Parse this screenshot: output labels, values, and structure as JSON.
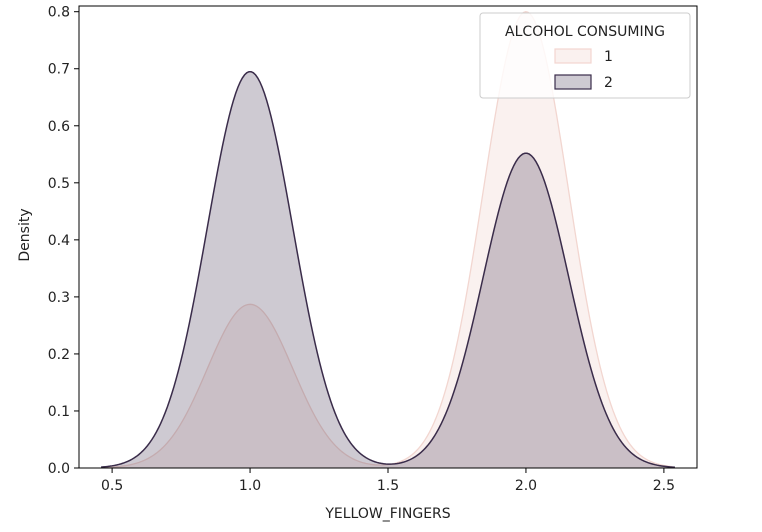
{
  "chart_data": {
    "type": "area",
    "xlabel": "YELLOW_FINGERS",
    "ylabel": "Density",
    "xlim": [
      0.38,
      2.62
    ],
    "ylim": [
      0,
      0.81
    ],
    "xticks": [
      0.5,
      1.0,
      1.5,
      2.0,
      2.5
    ],
    "xtick_labels": [
      "0.5",
      "1.0",
      "1.5",
      "2.0",
      "2.5"
    ],
    "yticks": [
      0.0,
      0.1,
      0.2,
      0.3,
      0.4,
      0.5,
      0.6,
      0.7,
      0.8
    ],
    "ytick_labels": [
      "0.0",
      "0.1",
      "0.2",
      "0.3",
      "0.4",
      "0.5",
      "0.6",
      "0.7",
      "0.8"
    ],
    "grid": false,
    "legend": {
      "title": "ALCOHOL CONSUMING",
      "placement": "top-right"
    },
    "series": [
      {
        "name": "1",
        "color": "#f2d6d0",
        "peaks": [
          {
            "x": 1.0,
            "density": 0.287
          },
          {
            "x": 2.0,
            "density": 0.8
          }
        ],
        "bandwidth": 0.155,
        "x_range": [
          0.47,
          2.53
        ]
      },
      {
        "name": "2",
        "color": "#3a2c4a",
        "peaks": [
          {
            "x": 1.0,
            "density": 0.695
          },
          {
            "x": 2.0,
            "density": 0.552
          }
        ],
        "bandwidth": 0.155,
        "x_range": [
          0.46,
          2.54
        ]
      }
    ]
  }
}
